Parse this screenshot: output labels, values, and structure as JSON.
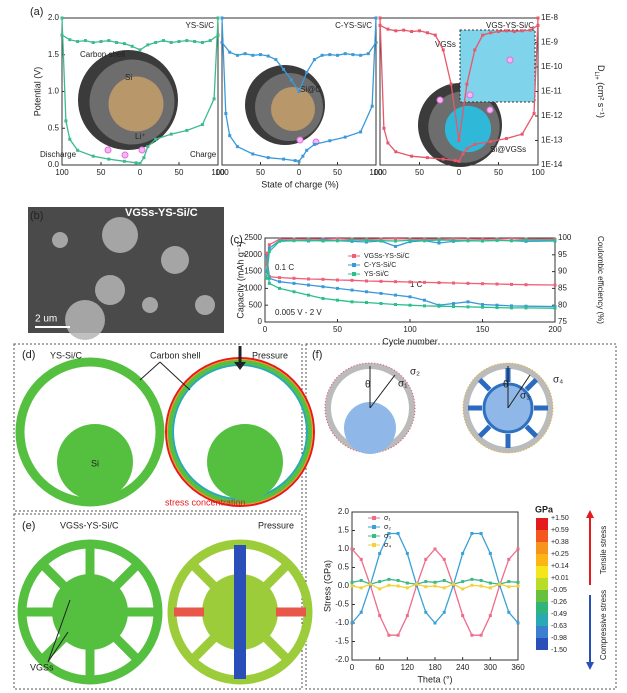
{
  "panel_labels": [
    "(a)",
    "(b)",
    "(c)",
    "(d)",
    "(e)",
    "(f)"
  ],
  "chart_data": [
    {
      "type": "line",
      "title": "YS-Si/C",
      "xlim": [
        0,
        200
      ],
      "ylim": [
        0,
        2.0
      ],
      "y2lim": [
        1e-14,
        1e-08
      ],
      "y2log": true,
      "xticks": [
        {
          "value": 0,
          "label": "100"
        },
        {
          "value": 50,
          "label": "50"
        },
        {
          "value": 100,
          "label": "0"
        },
        {
          "value": 150,
          "label": "50"
        },
        {
          "value": 200,
          "label": "100"
        }
      ],
      "yticks": [
        {
          "value": 0,
          "label": "0.0"
        },
        {
          "value": 0.5,
          "label": "0.5"
        },
        {
          "value": 1.0,
          "label": "1.0"
        },
        {
          "value": 1.5,
          "label": "1.5"
        },
        {
          "value": 2.0,
          "label": "2.0"
        }
      ],
      "ylabel": "Potential (V)",
      "annotations": [
        "Carbon shell",
        "Si",
        "Li⁺",
        "Discharge",
        "Charge"
      ],
      "series": [
        {
          "color": "#3dbb8c",
          "x": [
            0,
            5,
            10,
            20,
            40,
            60,
            80,
            95,
            100,
            105,
            110,
            120,
            140,
            160,
            180,
            195,
            200
          ],
          "values": [
            2.0,
            0.6,
            0.35,
            0.2,
            0.12,
            0.08,
            0.05,
            0.03,
            0.02,
            0.1,
            0.25,
            0.35,
            0.42,
            0.47,
            0.55,
            0.9,
            2.0
          ]
        },
        {
          "color": "#3dbb8c",
          "axis": "y2",
          "x": [
            0,
            10,
            20,
            30,
            40,
            50,
            60,
            70,
            80,
            90,
            100,
            110,
            120,
            130,
            140,
            150,
            160,
            170,
            180,
            190,
            200
          ],
          "values": [
            2e-09,
            1.3e-09,
            1.1e-09,
            1.2e-09,
            1e-09,
            1.1e-09,
            1.2e-09,
            1e-09,
            9e-10,
            7e-10,
            5e-10,
            8e-10,
            1e-09,
            1.2e-09,
            1e-09,
            1.1e-09,
            1.2e-09,
            1.1e-09,
            1e-09,
            1.2e-09,
            2e-09
          ]
        }
      ]
    },
    {
      "type": "line",
      "title": "C-YS-Si/C",
      "xlim": [
        0,
        200
      ],
      "ylim": [
        0,
        2.0
      ],
      "y2lim": [
        1e-14,
        1e-08
      ],
      "y2log": true,
      "xticks": [
        {
          "value": 0,
          "label": "100"
        },
        {
          "value": 50,
          "label": "50"
        },
        {
          "value": 100,
          "label": "0"
        },
        {
          "value": 150,
          "label": "50"
        },
        {
          "value": 200,
          "label": "100"
        }
      ],
      "xlabel": "State of charge (%)",
      "annotations": [
        "Si@C"
      ],
      "series": [
        {
          "color": "#3a9ad9",
          "x": [
            0,
            5,
            10,
            20,
            40,
            60,
            80,
            95,
            100,
            105,
            110,
            120,
            140,
            160,
            180,
            195,
            200
          ],
          "values": [
            2.0,
            0.7,
            0.4,
            0.25,
            0.15,
            0.1,
            0.08,
            0.06,
            0.05,
            0.12,
            0.2,
            0.28,
            0.33,
            0.38,
            0.45,
            0.8,
            2.0
          ]
        },
        {
          "color": "#3a9ad9",
          "axis": "y2",
          "x": [
            0,
            10,
            20,
            30,
            40,
            50,
            60,
            70,
            80,
            90,
            100,
            110,
            120,
            130,
            140,
            150,
            160,
            170,
            180,
            190,
            200
          ],
          "values": [
            1e-09,
            4e-10,
            3e-10,
            3.5e-10,
            3e-10,
            3.2e-10,
            2.8e-10,
            2e-10,
            8e-11,
            3e-11,
            1e-11,
            6e-11,
            2e-10,
            3e-10,
            3.2e-10,
            3e-10,
            3.5e-10,
            3.2e-10,
            3e-10,
            3.5e-10,
            1e-09
          ]
        }
      ]
    },
    {
      "type": "line",
      "title": "VGS-YS-Si/C",
      "xlim": [
        0,
        200
      ],
      "ylim": [
        0,
        2.0
      ],
      "y2lim": [
        1e-14,
        1e-08
      ],
      "y2log": true,
      "xticks": [
        {
          "value": 0,
          "label": "100"
        },
        {
          "value": 50,
          "label": "50"
        },
        {
          "value": 100,
          "label": "0"
        },
        {
          "value": 150,
          "label": "50"
        },
        {
          "value": 200,
          "label": "100"
        }
      ],
      "y2ticks": [
        {
          "value": 1e-14,
          "label": "1E-14"
        },
        {
          "value": 1e-13,
          "label": "1E-13"
        },
        {
          "value": 1e-12,
          "label": "1E-12"
        },
        {
          "value": 1e-11,
          "label": "1E-11"
        },
        {
          "value": 1e-10,
          "label": "1E-10"
        },
        {
          "value": 1e-09,
          "label": "1E-9"
        },
        {
          "value": 1e-08,
          "label": "1E-8"
        }
      ],
      "y2label": {
        "main": "D",
        "sub": "Li+",
        "unit": " (cm² s⁻¹)"
      },
      "annotations": [
        "VGSs",
        "Si@VGSs"
      ],
      "series": [
        {
          "color": "#e8576a",
          "x": [
            0,
            5,
            10,
            20,
            40,
            60,
            80,
            95,
            100,
            105,
            110,
            120,
            140,
            160,
            180,
            195,
            200
          ],
          "values": [
            2.0,
            0.5,
            0.3,
            0.18,
            0.12,
            0.1,
            0.08,
            0.06,
            0.05,
            0.15,
            0.22,
            0.28,
            0.32,
            0.36,
            0.42,
            0.7,
            2.0
          ]
        },
        {
          "color": "#e8576a",
          "axis": "y2",
          "x": [
            0,
            10,
            20,
            30,
            40,
            50,
            60,
            70,
            80,
            90,
            100,
            110,
            120,
            130,
            140,
            150,
            160,
            170,
            180,
            190,
            200
          ],
          "values": [
            5e-09,
            3.5e-09,
            3e-09,
            3.2e-09,
            2.8e-09,
            3e-09,
            2.5e-09,
            2e-09,
            5e-10,
            2e-11,
            1e-13,
            2e-11,
            5e-10,
            2e-09,
            2.5e-09,
            2.8e-09,
            3e-09,
            2.8e-09,
            3e-09,
            3.2e-09,
            5e-09
          ]
        }
      ]
    },
    {
      "type": "line",
      "xlim": [
        0,
        200
      ],
      "ylim": [
        0,
        2500
      ],
      "y2lim": [
        75,
        100
      ],
      "xticks": [
        0,
        50,
        100,
        150,
        200
      ],
      "yticks": [
        0,
        500,
        1000,
        1500,
        2000,
        2500
      ],
      "y2ticks": [
        75,
        80,
        85,
        90,
        95,
        100
      ],
      "xlabel": "Cycle number",
      "ylabel": "Capacity (mAh g⁻¹)",
      "y2label": "Coulombic efficiency (%)",
      "annotations": [
        "0.1 C",
        "1 C",
        "0.005 V - 2 V"
      ],
      "series": [
        {
          "name": "VGSs-YS-Si/C",
          "color": "#ef5f78",
          "x": [
            1,
            3,
            10,
            20,
            30,
            40,
            50,
            60,
            70,
            80,
            90,
            100,
            110,
            120,
            130,
            140,
            150,
            160,
            170,
            180,
            200
          ],
          "values": [
            2050,
            1350,
            1320,
            1300,
            1280,
            1270,
            1250,
            1240,
            1220,
            1210,
            1200,
            1190,
            1180,
            1170,
            1160,
            1150,
            1140,
            1130,
            1120,
            1110,
            1100
          ]
        },
        {
          "name": "C-YS-Si/C",
          "color": "#3a9ad9",
          "x": [
            1,
            3,
            10,
            20,
            30,
            40,
            50,
            60,
            70,
            80,
            90,
            100,
            110,
            120,
            130,
            140,
            150,
            160,
            170,
            180,
            200
          ],
          "values": [
            1950,
            1300,
            1200,
            1150,
            1100,
            1050,
            1000,
            950,
            900,
            850,
            800,
            750,
            650,
            500,
            550,
            600,
            520,
            500,
            480,
            470,
            460
          ]
        },
        {
          "name": "YS-Si/C",
          "color": "#2bbf8a",
          "x": [
            1,
            3,
            10,
            20,
            30,
            40,
            50,
            60,
            70,
            80,
            90,
            100,
            110,
            120,
            130,
            140,
            150,
            160,
            170,
            180,
            200
          ],
          "values": [
            1850,
            1150,
            1000,
            900,
            800,
            700,
            650,
            600,
            580,
            550,
            520,
            500,
            480,
            470,
            460,
            450,
            440,
            430,
            420,
            420,
            410
          ]
        },
        {
          "color": "#ef5f78",
          "axis": "y2",
          "x": [
            1,
            3,
            10,
            20,
            30,
            40,
            50,
            60,
            70,
            80,
            90,
            100,
            110,
            120,
            130,
            140,
            150,
            160,
            170,
            180,
            200
          ],
          "values": [
            92,
            98,
            99.6,
            99.7,
            99.6,
            99.7,
            99.8,
            99.7,
            99.6,
            99.7,
            99.8,
            99.7,
            99.6,
            99.7,
            99.8,
            99.7,
            99.6,
            99.7,
            99.8,
            99.7,
            99.6
          ]
        },
        {
          "color": "#3a9ad9",
          "axis": "y2",
          "x": [
            1,
            3,
            10,
            20,
            30,
            40,
            50,
            60,
            70,
            80,
            90,
            100,
            110,
            120,
            130,
            140,
            150,
            160,
            170,
            180,
            200
          ],
          "values": [
            90,
            97,
            99.2,
            99.3,
            99.1,
            99.4,
            99.2,
            99.0,
            98.8,
            99.1,
            97.5,
            98.9,
            99.2,
            98.5,
            99.0,
            99.2,
            99.1,
            99.3,
            99.2,
            99.0,
            99.1
          ]
        },
        {
          "color": "#2bbf8a",
          "axis": "y2",
          "x": [
            1,
            3,
            10,
            20,
            30,
            40,
            50,
            60,
            70,
            80,
            90,
            100,
            110,
            120,
            130,
            140,
            150,
            160,
            170,
            180,
            200
          ],
          "values": [
            88,
            96,
            99.0,
            99.2,
            99.3,
            99.1,
            99.2,
            99.4,
            99.3,
            99.2,
            99.1,
            99.3,
            99.2,
            99.4,
            99.3,
            99.2,
            99.1,
            99.3,
            99.2,
            99.4,
            99.3
          ]
        }
      ]
    },
    {
      "type": "line",
      "xlim": [
        0,
        360
      ],
      "ylim": [
        -2.0,
        2.0
      ],
      "xticks": [
        0,
        60,
        120,
        180,
        240,
        300,
        360
      ],
      "yticks": [
        {
          "value": -2.0,
          "label": "-2.0"
        },
        {
          "value": -1.5,
          "label": "-1.5"
        },
        {
          "value": -1.0,
          "label": "-1.0"
        },
        {
          "value": -0.5,
          "label": "-0.5"
        },
        {
          "value": 0.0,
          "label": "0.0"
        },
        {
          "value": 0.5,
          "label": "0.5"
        },
        {
          "value": 1.0,
          "label": "1.0"
        },
        {
          "value": 1.5,
          "label": "1.5"
        },
        {
          "value": 2.0,
          "label": "2.0"
        }
      ],
      "xlabel": "Theta (°)",
      "ylabel": "Stress (GPa)",
      "series": [
        {
          "name": "σ₁",
          "color": "#f06b8a",
          "x": [
            0,
            20,
            40,
            60,
            80,
            100,
            120,
            140,
            160,
            180,
            200,
            220,
            240,
            260,
            280,
            300,
            320,
            340,
            360
          ],
          "values": [
            1.0,
            0.72,
            0.01,
            -0.8,
            -1.33,
            -1.33,
            -0.8,
            0.01,
            0.72,
            1.0,
            0.72,
            0.01,
            -0.8,
            -1.33,
            -1.33,
            -0.8,
            0.01,
            0.72,
            1.0
          ]
        },
        {
          "name": "σ₂",
          "color": "#3aa0d8",
          "x": [
            0,
            20,
            40,
            60,
            80,
            100,
            120,
            140,
            160,
            180,
            200,
            220,
            240,
            260,
            280,
            300,
            320,
            340,
            360
          ],
          "values": [
            -1.0,
            -0.71,
            0.03,
            0.88,
            1.42,
            1.42,
            0.88,
            0.03,
            -0.71,
            -1.0,
            -0.71,
            0.03,
            0.88,
            1.42,
            1.42,
            0.88,
            0.03,
            -0.71,
            -1.0
          ]
        },
        {
          "name": "σ₃",
          "color": "#3cb88a",
          "x": [
            0,
            20,
            40,
            60,
            80,
            100,
            120,
            140,
            160,
            180,
            200,
            220,
            240,
            260,
            280,
            300,
            320,
            340,
            360
          ],
          "values": [
            0.1,
            0.15,
            0.05,
            0.12,
            0.18,
            0.15,
            0.08,
            0.05,
            0.12,
            0.1,
            0.15,
            0.05,
            0.12,
            0.18,
            0.15,
            0.08,
            0.05,
            0.12,
            0.1
          ]
        },
        {
          "name": "σ₄",
          "color": "#f0d23a",
          "x": [
            0,
            20,
            40,
            60,
            80,
            100,
            120,
            140,
            160,
            180,
            200,
            220,
            240,
            260,
            280,
            300,
            320,
            340,
            360
          ],
          "values": [
            0.0,
            -0.05,
            0.05,
            -0.08,
            0.02,
            0.0,
            -0.05,
            0.05,
            -0.02,
            0.0,
            -0.05,
            0.05,
            -0.08,
            0.02,
            0.0,
            -0.05,
            0.05,
            -0.02,
            0.0
          ]
        }
      ]
    }
  ],
  "sem": {
    "label": "VGSs-YS-Si/C",
    "scale": "2 um"
  },
  "diagram_d": {
    "title": "YS-Si/C",
    "shell": "Carbon shell",
    "core": "Si",
    "force": "Pressure",
    "note": "stress concentration"
  },
  "diagram_e": {
    "title": "VGSs-YS-Si/C",
    "force": "Pressure",
    "spokes": "VGSs"
  },
  "diagram_f": {
    "left": [
      "θ",
      "σ₁",
      "σ₂"
    ],
    "right": [
      "θ",
      "σ₃",
      "σ₄"
    ]
  },
  "colorbar": {
    "title": "GPa",
    "labels": [
      "+1.50",
      "+0.59",
      "+0.38",
      "+0.25",
      "+0.14",
      "+0.01",
      "-0.05",
      "-0.26",
      "-0.49",
      "-0.63",
      "-0.98",
      "-1.50"
    ],
    "colors": [
      "#e41a1c",
      "#f4561d",
      "#f7941d",
      "#fdb515",
      "#f5e61c",
      "#b9dc26",
      "#66c23e",
      "#2fb57a",
      "#28a9b4",
      "#3c7fd0",
      "#2a4fb8"
    ],
    "tensile": "Tensile stress",
    "compressive": "Compressive stress"
  }
}
